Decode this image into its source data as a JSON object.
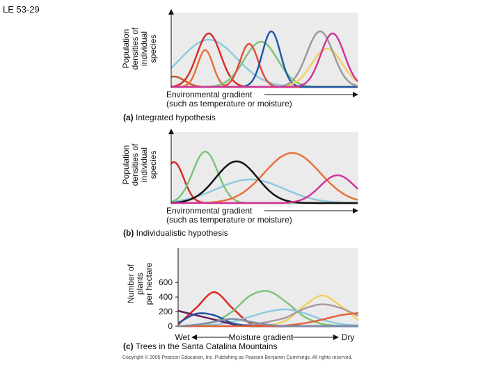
{
  "page_label": "LE 53-29",
  "panel_a": {
    "y_label": [
      "Population",
      "densities of",
      "individual",
      "species"
    ],
    "x_label": [
      "Environmental gradient",
      "(such as temperature or moisture)"
    ],
    "caption_letter": "(a)",
    "caption": "Integrated hypothesis"
  },
  "panel_b": {
    "y_label": [
      "Population",
      "densities of",
      "individual",
      "species"
    ],
    "x_label": [
      "Environmental gradient",
      "(such as temperature or moisture)"
    ],
    "caption_letter": "(b)",
    "caption": "Individualistic hypothesis"
  },
  "chart_data": {
    "type": "line",
    "y_label": [
      "Number of",
      "plants",
      "per hectare"
    ],
    "x_label": "Moisture gradient",
    "x_start_label": "Wet",
    "x_end_label": "Dry",
    "caption_letter": "(c)",
    "caption": "Trees in the Santa Catalina Mountains",
    "categories": [
      null,
      null,
      null,
      null,
      null,
      null,
      null,
      null,
      null,
      null,
      null
    ],
    "ylim": [
      0,
      1070
    ],
    "yticks": [
      0,
      200,
      400,
      600
    ],
    "series": [
      {
        "color": "#e02828",
        "values": [
          20,
          250,
          467,
          250,
          40,
          5,
          0,
          0,
          0,
          0,
          0
        ]
      },
      {
        "color": "#7cc47a",
        "values": [
          0,
          10,
          60,
          200,
          420,
          480,
          330,
          130,
          30,
          5,
          0
        ]
      },
      {
        "color": "#8ec9e0",
        "values": [
          0,
          0,
          20,
          60,
          130,
          200,
          230,
          180,
          90,
          30,
          10
        ]
      },
      {
        "color": "#f2d15b",
        "values": [
          0,
          0,
          0,
          0,
          0,
          10,
          80,
          280,
          420,
          280,
          80
        ]
      },
      {
        "color": "#a89aa0",
        "values": [
          0,
          0,
          0,
          0,
          20,
          60,
          120,
          240,
          300,
          250,
          140
        ]
      },
      {
        "color": "#6a1f5c",
        "values": [
          210,
          150,
          90,
          30,
          0,
          0,
          0,
          0,
          0,
          0,
          0
        ]
      },
      {
        "color": "#1f4fa0",
        "values": [
          40,
          170,
          150,
          40,
          5,
          0,
          0,
          0,
          0,
          0,
          0
        ]
      },
      {
        "color": "#e0603a",
        "values": [
          0,
          0,
          0,
          0,
          0,
          0,
          10,
          40,
          90,
          150,
          180
        ]
      },
      {
        "color": "#7f8fa8",
        "values": [
          0,
          20,
          60,
          100,
          60,
          20,
          0,
          0,
          0,
          0,
          0
        ]
      }
    ]
  },
  "copyright": "Copyright © 2005 Pearson Education, Inc. Publishing as Pearson Benjamin Cummings. All rights reserved."
}
